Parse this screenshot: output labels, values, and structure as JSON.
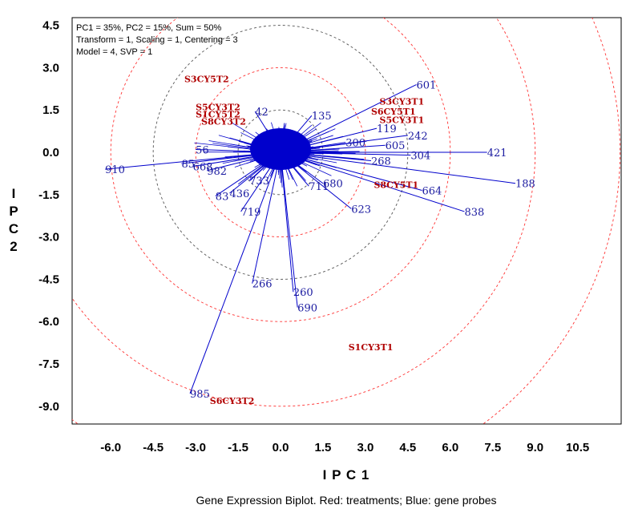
{
  "info": [
    "PC1 = 35%, PC2 = 15%, Sum = 50%",
    "Transform = 1, Scaling = 1, Centering = 3",
    "Model = 4, SVP = 1"
  ],
  "caption": "Gene Expression Biplot. Red: treatments; Blue: gene probes",
  "colors": {
    "probe": "#0000cc",
    "treatment": "#b00000",
    "grid": "#ff3333",
    "inner_grid": "#555555"
  },
  "chart_data": {
    "type": "scatter",
    "subtype": "biplot",
    "xlabel": "I P C 1",
    "ylabel": "I P C 2",
    "xlim": [
      -8.0,
      12.0
    ],
    "ylim": [
      -10.0,
      4.7
    ],
    "xticks": [
      "-6.0",
      "-4.5",
      "-3.0",
      "-1.5",
      "0.0",
      "1.5",
      "3.0",
      "4.5",
      "6.0",
      "7.5",
      "9.0",
      "10.5"
    ],
    "yticks": [
      "4.5",
      "3.0",
      "1.5",
      "0.0",
      "-1.5",
      "-3.0",
      "-4.5",
      "-6.0",
      "-7.5",
      "-9.0"
    ],
    "circles_red": [
      3,
      6,
      9,
      12
    ],
    "circles_dark": [
      1.5,
      4.5
    ],
    "probes": [
      {
        "name": "601",
        "x": 4.8,
        "y": 2.4
      },
      {
        "name": "421",
        "x": 7.3,
        "y": 0.0
      },
      {
        "name": "188",
        "x": 8.3,
        "y": -1.1
      },
      {
        "name": "664",
        "x": 5.0,
        "y": -1.35
      },
      {
        "name": "838",
        "x": 6.5,
        "y": -2.1
      },
      {
        "name": "304",
        "x": 4.6,
        "y": -0.1
      },
      {
        "name": "242",
        "x": 4.5,
        "y": 0.6
      },
      {
        "name": "605",
        "x": 3.7,
        "y": 0.25
      },
      {
        "name": "268",
        "x": 3.2,
        "y": -0.3
      },
      {
        "name": "623",
        "x": 2.5,
        "y": -2.0
      },
      {
        "name": "680",
        "x": 1.5,
        "y": -1.1
      },
      {
        "name": "711",
        "x": 1.0,
        "y": -1.2
      },
      {
        "name": "690",
        "x": 0.6,
        "y": -5.5
      },
      {
        "name": "260",
        "x": 0.45,
        "y": -4.95
      },
      {
        "name": "266",
        "x": -1.0,
        "y": -4.65
      },
      {
        "name": "985",
        "x": -3.2,
        "y": -8.55
      },
      {
        "name": "719",
        "x": -1.4,
        "y": -2.1
      },
      {
        "name": "436",
        "x": -1.8,
        "y": -1.45
      },
      {
        "name": "83",
        "x": -2.3,
        "y": -1.55
      },
      {
        "name": "733",
        "x": -1.1,
        "y": -1.0
      },
      {
        "name": "982",
        "x": -2.6,
        "y": -0.65
      },
      {
        "name": "668",
        "x": -3.1,
        "y": -0.5
      },
      {
        "name": "85",
        "x": -3.5,
        "y": -0.4
      },
      {
        "name": "910",
        "x": -6.2,
        "y": -0.6
      },
      {
        "name": "56",
        "x": -3.0,
        "y": 0.1
      },
      {
        "name": "135",
        "x": 1.1,
        "y": 1.3
      },
      {
        "name": "119",
        "x": 3.4,
        "y": 0.85
      },
      {
        "name": "300",
        "x": 2.3,
        "y": 0.35
      },
      {
        "name": "42",
        "x": -0.9,
        "y": 1.45
      }
    ],
    "treatments": [
      {
        "name": "S3CY5T2",
        "x": -3.4,
        "y": 2.6
      },
      {
        "name": "S5CY3T2",
        "x": -3.0,
        "y": 1.6
      },
      {
        "name": "S1CY5T2",
        "x": -3.0,
        "y": 1.35
      },
      {
        "name": "S8CY3T2",
        "x": -2.8,
        "y": 1.1
      },
      {
        "name": "S3CY3T1",
        "x": 3.5,
        "y": 1.8
      },
      {
        "name": "S6CY5T1",
        "x": 3.2,
        "y": 1.45
      },
      {
        "name": "S5CY3T1",
        "x": 3.5,
        "y": 1.15
      },
      {
        "name": "S8CY5T1",
        "x": 3.3,
        "y": -1.15
      },
      {
        "name": "S1CY3T1",
        "x": 2.4,
        "y": -6.9
      },
      {
        "name": "S6CY3T2",
        "x": -2.5,
        "y": -8.8
      }
    ]
  }
}
